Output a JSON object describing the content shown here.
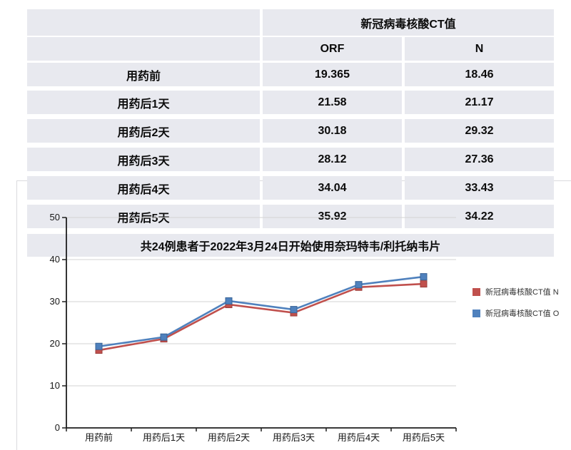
{
  "table": {
    "header_group": "新冠病毒核酸CT值",
    "columns": [
      "ORF",
      "N"
    ],
    "rows": [
      {
        "label": "用药前",
        "orf": "19.365",
        "n": "18.46"
      },
      {
        "label": "用药后1天",
        "orf": "21.58",
        "n": "21.17"
      },
      {
        "label": "用药后2天",
        "orf": "30.18",
        "n": "29.32"
      },
      {
        "label": "用药后3天",
        "orf": "28.12",
        "n": "27.36"
      },
      {
        "label": "用药后4天",
        "orf": "34.04",
        "n": "33.43"
      },
      {
        "label": "用药后5天",
        "orf": "35.92",
        "n": "34.22"
      }
    ]
  },
  "chart_data": {
    "type": "line",
    "title": "共24例患者于2022年3月24日开始使用奈玛特韦/利托纳韦片",
    "categories": [
      "用药前",
      "用药后1天",
      "用药后2天",
      "用药后3天",
      "用药后4天",
      "用药后5天"
    ],
    "series": [
      {
        "name": "新冠病毒核酸CT值 N",
        "color": "#c0504d",
        "edge": "#9e3f3c",
        "values": [
          18.46,
          21.17,
          29.32,
          27.36,
          33.43,
          34.22
        ]
      },
      {
        "name": "新冠病毒核酸CT值 O",
        "color": "#4f81bd",
        "edge": "#3a6496",
        "values": [
          19.365,
          21.58,
          30.18,
          28.12,
          34.04,
          35.92
        ]
      }
    ],
    "ylim": [
      0,
      50
    ],
    "yticks": [
      0,
      10,
      20,
      30,
      40,
      50
    ],
    "grid": true,
    "marker": "square",
    "legend_position": "right",
    "colors": {
      "grid": "#d3d3d3",
      "axis": "#1f1f1f",
      "row_bg": "#e8e9ef"
    }
  }
}
